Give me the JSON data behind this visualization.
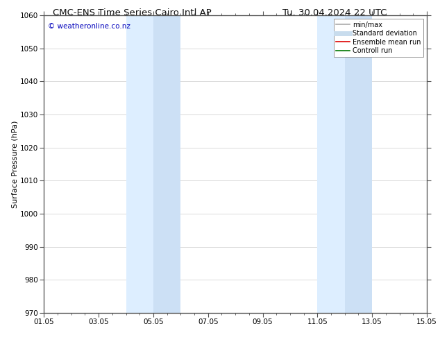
{
  "title_left": "CMC-ENS Time Series Cairo Intl AP",
  "title_right": "Tu. 30.04.2024 22 UTC",
  "ylabel": "Surface Pressure (hPa)",
  "xlabel_ticks": [
    "01.05",
    "03.05",
    "05.05",
    "07.05",
    "09.05",
    "11.05",
    "13.05",
    "15.05"
  ],
  "xtick_positions": [
    0,
    2,
    4,
    6,
    8,
    10,
    12,
    14
  ],
  "xlim": [
    0,
    14
  ],
  "ylim": [
    970,
    1060
  ],
  "yticks": [
    970,
    980,
    990,
    1000,
    1010,
    1020,
    1030,
    1040,
    1050,
    1060
  ],
  "watermark": "© weatheronline.co.nz",
  "watermark_color": "#0000bb",
  "bg_color": "#ffffff",
  "plot_bg_color": "#ffffff",
  "shaded_bands": [
    {
      "x_start": 3.0,
      "x_end": 4.0,
      "color": "#ddeeff"
    },
    {
      "x_start": 4.0,
      "x_end": 5.0,
      "color": "#cce0f5"
    },
    {
      "x_start": 10.0,
      "x_end": 11.0,
      "color": "#ddeeff"
    },
    {
      "x_start": 11.0,
      "x_end": 12.0,
      "color": "#cce0f5"
    }
  ],
  "legend_items": [
    {
      "label": "min/max",
      "color": "#aaaaaa",
      "lw": 1.2,
      "style": "solid"
    },
    {
      "label": "Standard deviation",
      "color": "#c8dced",
      "lw": 5,
      "style": "solid"
    },
    {
      "label": "Ensemble mean run",
      "color": "#dd0000",
      "lw": 1.2,
      "style": "solid"
    },
    {
      "label": "Controll run",
      "color": "#007700",
      "lw": 1.2,
      "style": "solid"
    }
  ],
  "grid_color": "#cccccc",
  "title_fontsize": 9.5,
  "tick_fontsize": 7.5,
  "ylabel_fontsize": 8,
  "watermark_fontsize": 7.5,
  "legend_fontsize": 7
}
